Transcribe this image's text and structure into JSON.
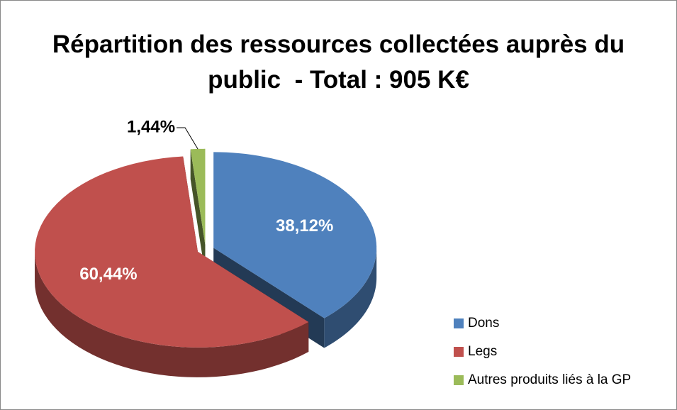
{
  "chart_data": {
    "type": "pie",
    "title": "Répartition des ressources collectées auprès du public  - Total : 905 K€",
    "categories": [
      "Dons",
      "Legs",
      "Autres produits liés à la GP"
    ],
    "values": [
      38.12,
      60.44,
      1.44
    ],
    "value_labels": [
      "38,12%",
      "60,44%",
      "1,44%"
    ],
    "colors": [
      "#4f81bd",
      "#c0504d",
      "#9bbb59"
    ],
    "legend": "right"
  }
}
